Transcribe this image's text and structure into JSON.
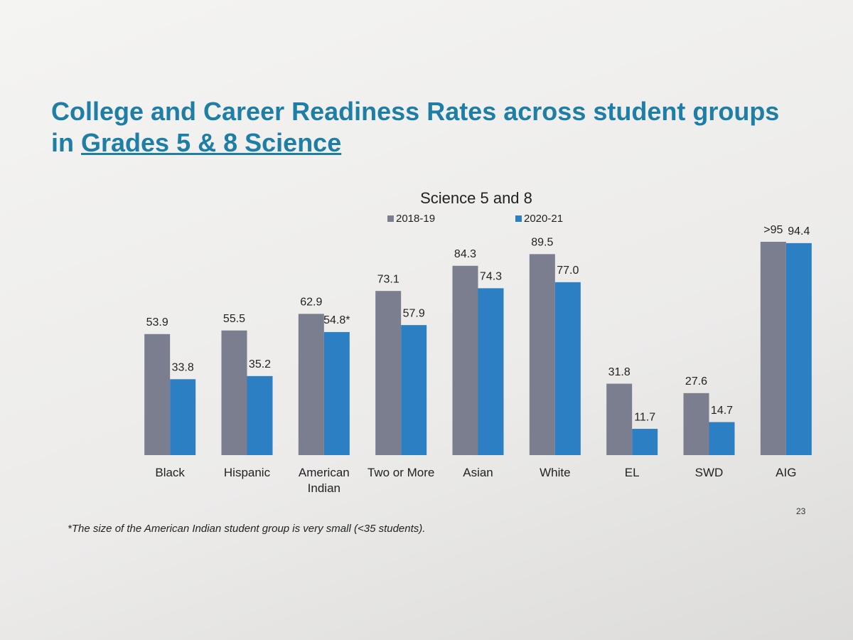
{
  "slide": {
    "title": "College and Career Readiness Rates across student groups",
    "title_prefix": "in",
    "title_underlined": "Grades 5 & 8 Science",
    "footnote": "*The size of the American Indian student group is very small (<35 students).",
    "page_number": "23"
  },
  "chart_data": {
    "type": "bar",
    "title": "Science 5 and 8",
    "categories": [
      "Black",
      "Hispanic",
      "American Indian",
      "Two or More",
      "Asian",
      "White",
      "EL",
      "SWD",
      "AIG"
    ],
    "series": [
      {
        "name": "2018-19",
        "color": "#7b7e8f",
        "values": [
          53.9,
          55.5,
          62.9,
          73.1,
          84.3,
          89.5,
          31.8,
          27.6,
          95
        ],
        "value_labels": [
          "53.9",
          "55.5",
          "62.9",
          "73.1",
          "84.3",
          "89.5",
          "31.8",
          "27.6",
          ">95"
        ]
      },
      {
        "name": "2020-21",
        "color": "#2b7fc2",
        "values": [
          33.8,
          35.2,
          54.8,
          57.9,
          74.3,
          77.0,
          11.7,
          14.7,
          94.4
        ],
        "value_labels": [
          "33.8",
          "35.2",
          "54.8*",
          "57.9",
          "74.3",
          "77.0",
          "11.7",
          "14.7",
          "94.4"
        ]
      }
    ],
    "legend": "top",
    "grid": false
  }
}
